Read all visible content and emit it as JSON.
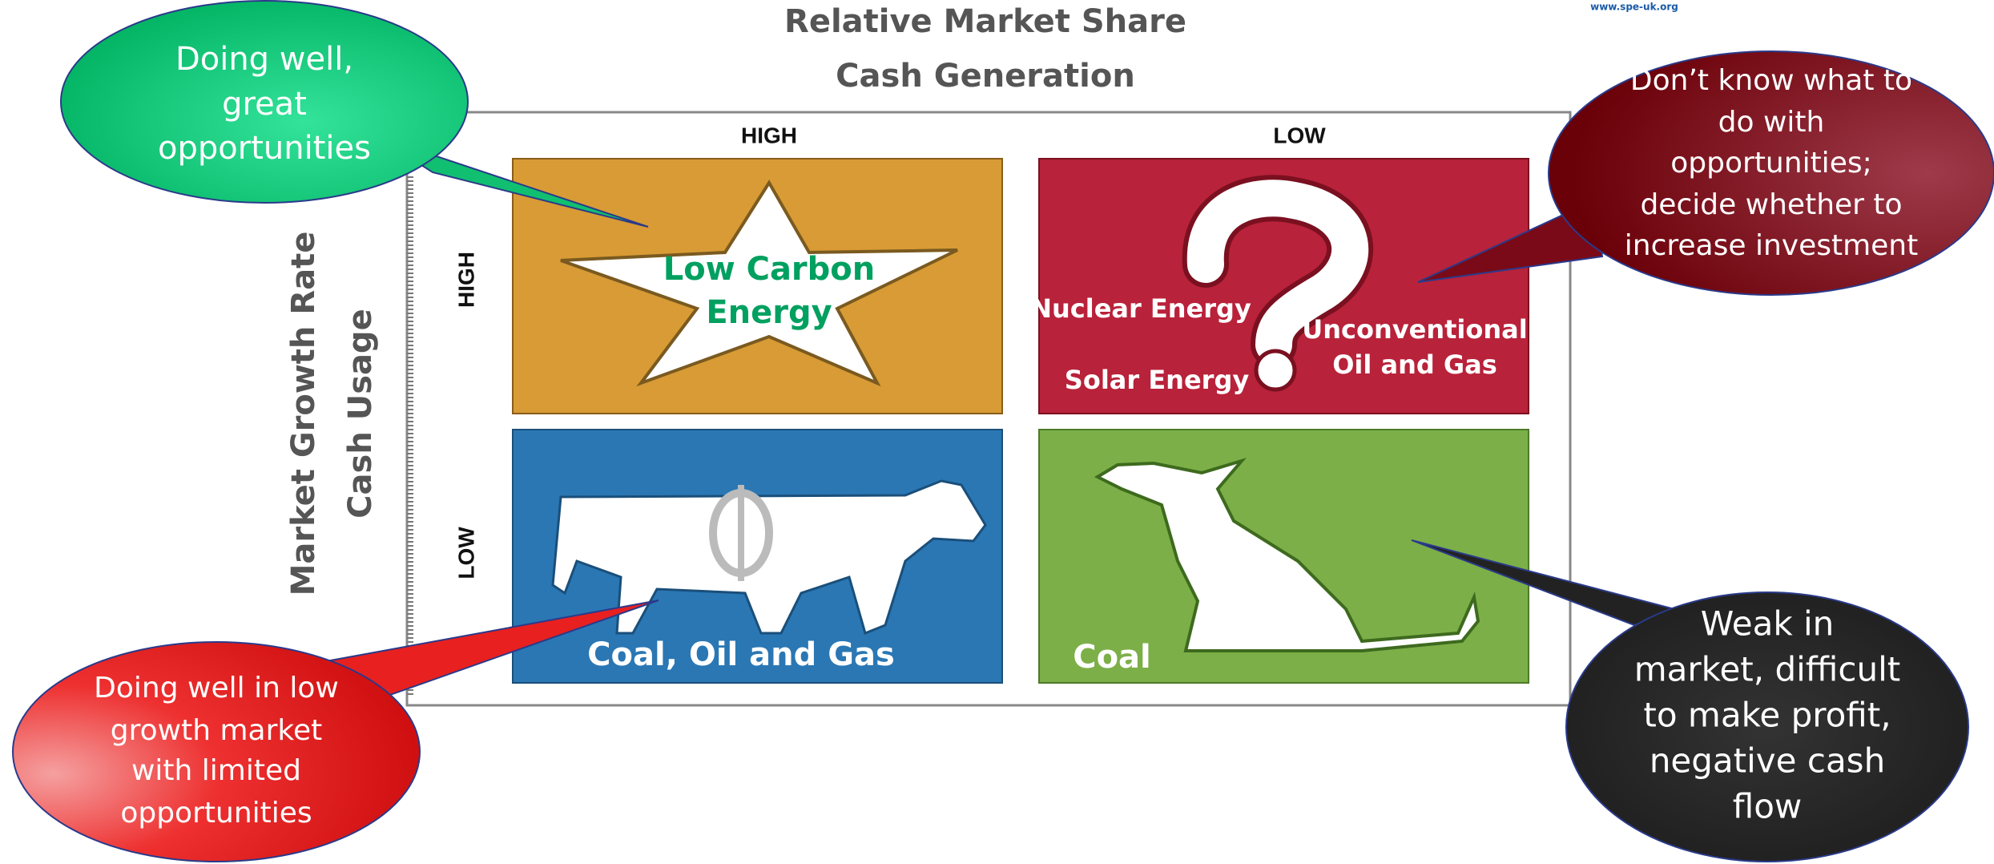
{
  "source": "www.spe-uk.org",
  "header": {
    "title": "Relative Market Share",
    "subtitle": "Cash Generation"
  },
  "columns": [
    "HIGH",
    "LOW"
  ],
  "rows": [
    "HIGH",
    "LOW"
  ],
  "side_axis": {
    "title": "Market Growth Rate",
    "subtitle": "Cash Usage"
  },
  "quadrants": [
    {
      "labels": [
        "Low Carbon",
        "Energy"
      ]
    },
    {
      "labels": [
        "Nuclear Energy",
        "Solar Energy",
        "Unconventional",
        "Oil and Gas"
      ]
    },
    {
      "labels": [
        "Coal, Oil and Gas"
      ]
    },
    {
      "labels": [
        "Coal"
      ]
    }
  ],
  "callouts": [
    {
      "lines": [
        "Doing well,",
        "great",
        "opportunities"
      ]
    },
    {
      "lines": [
        "Don’t know what to",
        "do with",
        "opportunities;",
        "decide whether to",
        "increase investment"
      ]
    },
    {
      "lines": [
        "Doing well in low",
        "growth market",
        "with limited",
        "opportunities"
      ]
    },
    {
      "lines": [
        "Weak in",
        "market, difficult",
        "to make profit,",
        "negative cash",
        "flow"
      ]
    }
  ]
}
